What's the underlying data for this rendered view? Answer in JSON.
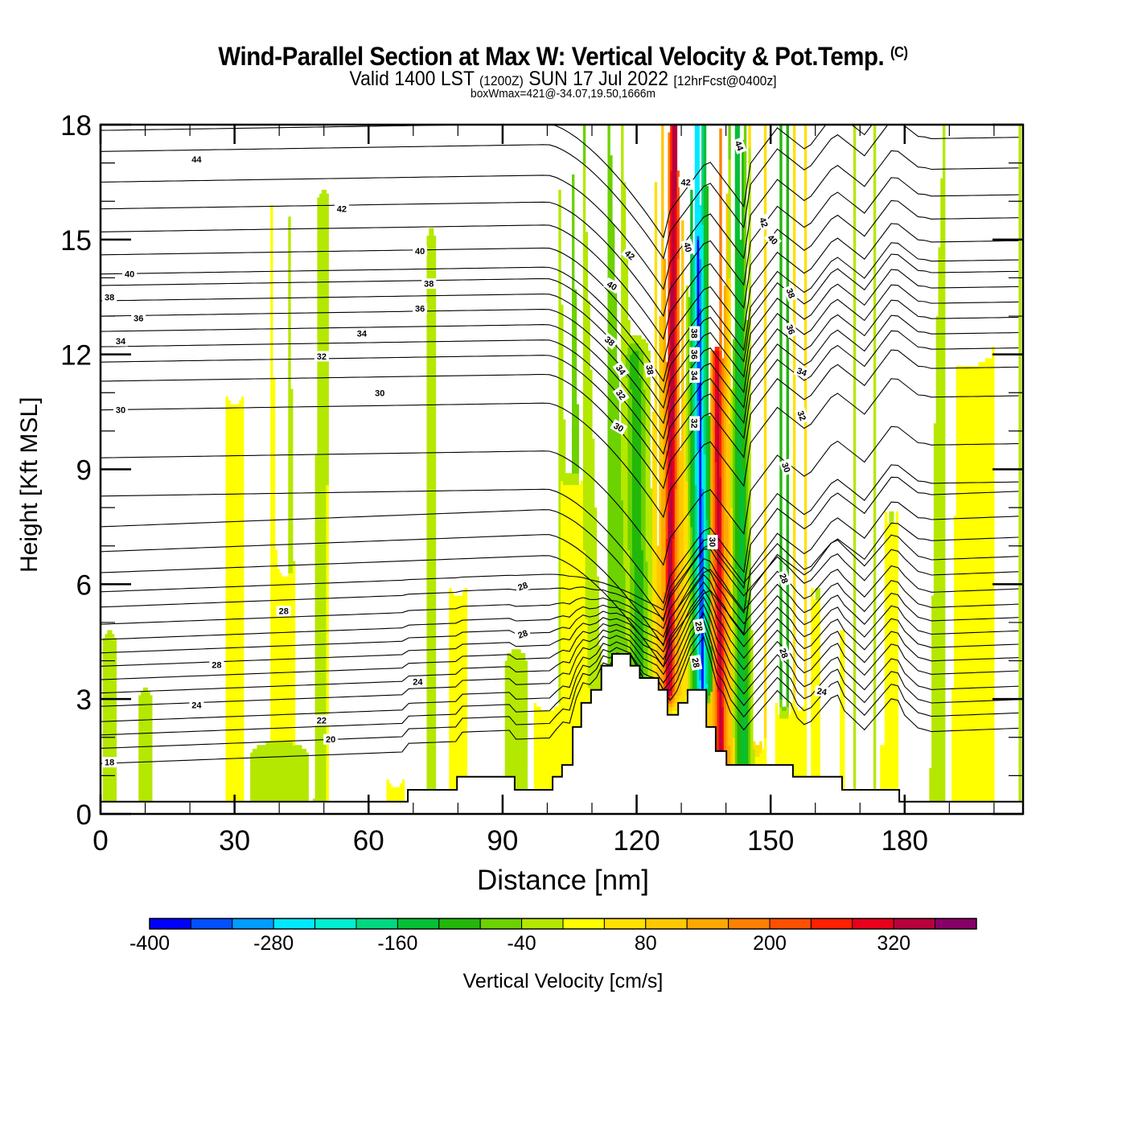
{
  "header": {
    "title_main": "Wind-Parallel Section at Max W: Vertical Velocity & Pot.Temp.",
    "title_copyright": "(C)",
    "valid_prefix": "Valid 1400 LST",
    "valid_utc": "(1200Z)",
    "valid_date": "SUN 17 Jul 2022",
    "forecast_info": "[12hrFcst@0400z]",
    "box_wmax": "boxWmax=421@-34.07,19.50,1666m"
  },
  "chart_data": {
    "type": "heatmap",
    "title": "Wind-Parallel Section at Max W: Vertical Velocity & Pot.Temp.",
    "xlabel": "Distance [nm]",
    "ylabel": "Height [Kft MSL]",
    "xlim": [
      0,
      206.5
    ],
    "ylim": [
      0,
      18
    ],
    "x_ticks": [
      0,
      30,
      60,
      90,
      120,
      150,
      180
    ],
    "x_tick_labels": [
      "0",
      "30",
      "60",
      "90",
      "120",
      "150",
      "180"
    ],
    "x_minor_tick_step": 10,
    "y_ticks": [
      0,
      3,
      6,
      9,
      12,
      15,
      18
    ],
    "y_tick_labels": [
      "0",
      "3",
      "6",
      "9",
      "12",
      "15",
      "18"
    ],
    "colorbar": {
      "label": "Vertical Velocity [cm/s]",
      "placement": "bottom",
      "min": -400,
      "max": 400,
      "step": 40,
      "tick_values": [
        -400,
        -280,
        -160,
        -40,
        80,
        200,
        320
      ],
      "tick_labels": [
        "-400",
        "-280",
        "-160",
        "-40",
        "80",
        "200",
        "320"
      ],
      "colors": [
        "#0000ff",
        "#0050ff",
        "#009cff",
        "#00e8ff",
        "#00f0d0",
        "#00d880",
        "#04c036",
        "#22b80a",
        "#6cd200",
        "#b5e800",
        "#ffff00",
        "#ffe000",
        "#ffc800",
        "#ffa800",
        "#ff8000",
        "#ff5000",
        "#ff2000",
        "#e8001c",
        "#b8003c",
        "#880068"
      ]
    },
    "background_velocity": 20,
    "velocity_features": [
      {
        "name": "weak-downdraft",
        "x_bottom": 2,
        "x_top": 2,
        "halfwidth": 2,
        "z_min": 0.3,
        "z_max": 4.5,
        "value": -20
      },
      {
        "name": "weak-downdraft",
        "x_bottom": 10,
        "x_top": 10,
        "halfwidth": 2,
        "z_min": 0.3,
        "z_max": 3.0,
        "value": -20
      },
      {
        "name": "weak-downdraft",
        "x_bottom": 30,
        "x_top": 30,
        "halfwidth": 2.5,
        "z_min": 11,
        "z_max": 18,
        "value": -20
      },
      {
        "name": "weak-downdraft",
        "x_bottom": 42,
        "x_top": 40,
        "halfwidth": 2.5,
        "z_min": 6.5,
        "z_max": 18,
        "value": -20
      },
      {
        "name": "weak-downdraft",
        "x_bottom": 49,
        "x_top": 50,
        "halfwidth": 1.6,
        "z_min": 0.3,
        "z_max": 16,
        "value": -20
      },
      {
        "name": "weak-downdraft",
        "x_bottom": 40,
        "x_top": 40,
        "halfwidth": 8,
        "z_min": 0.3,
        "z_max": 1.6,
        "value": -20
      },
      {
        "name": "weak-downdraft",
        "x_bottom": 66,
        "x_top": 66,
        "halfwidth": 2.5,
        "z_min": 1,
        "z_max": 18,
        "value": -20
      },
      {
        "name": "weak-downdraft",
        "x_bottom": 74,
        "x_top": 74,
        "halfwidth": 1.2,
        "z_min": 0.6,
        "z_max": 15,
        "value": -20
      },
      {
        "name": "weak-downdraft",
        "x_bottom": 80,
        "x_top": 80,
        "halfwidth": 2.5,
        "z_min": 6,
        "z_max": 18,
        "value": -20
      },
      {
        "name": "weak-downdraft",
        "x_bottom": 93,
        "x_top": 93,
        "halfwidth": 3,
        "z_min": 0.6,
        "z_max": 4.0,
        "value": -20
      },
      {
        "name": "weak-downdraft",
        "x_bottom": 100,
        "x_top": 100,
        "halfwidth": 4,
        "z_min": 3,
        "z_max": 18,
        "value": -20
      },
      {
        "name": "moderate-downdraft",
        "x_bottom": 107,
        "x_top": 104,
        "halfwidth": 3,
        "z_min": 9,
        "z_max": 18,
        "value": -60
      },
      {
        "name": "moderate-downdraft",
        "x_bottom": 116,
        "x_top": 111,
        "halfwidth": 5,
        "z_min": 3,
        "z_max": 18,
        "value": -70
      },
      {
        "name": "downdraft",
        "x_bottom": 121,
        "x_top": 119,
        "halfwidth": 2.5,
        "z_min": 3,
        "z_max": 12,
        "value": -100
      },
      {
        "name": "updraft-left",
        "x_bottom": 127,
        "x_top": 128.5,
        "halfwidth": 1.4,
        "z_min": 3.2,
        "z_max": 18,
        "value": 350
      },
      {
        "name": "updraft-left-edge",
        "x_bottom": 127,
        "x_top": 128.5,
        "halfwidth": 3.0,
        "z_min": 3.2,
        "z_max": 18,
        "value": 180
      },
      {
        "name": "downdraft-core",
        "x_bottom": 135,
        "x_top": 133.5,
        "halfwidth": 0.9,
        "z_min": 3.3,
        "z_max": 15,
        "value": -380
      },
      {
        "name": "downdraft-core-edge",
        "x_bottom": 135,
        "x_top": 133.5,
        "halfwidth": 2.2,
        "z_min": 3.3,
        "z_max": 18,
        "value": -260
      },
      {
        "name": "updraft-right",
        "x_bottom": 139,
        "x_top": 137.5,
        "halfwidth": 1.2,
        "z_min": 1.5,
        "z_max": 12,
        "value": 330
      },
      {
        "name": "updraft-right-edge",
        "x_bottom": 139,
        "x_top": 137.5,
        "halfwidth": 2.6,
        "z_min": 1.3,
        "z_max": 18,
        "value": 200
      },
      {
        "name": "downdraft",
        "x_bottom": 144,
        "x_top": 142.5,
        "halfwidth": 2.0,
        "z_min": 1.3,
        "z_max": 18,
        "value": -130
      },
      {
        "name": "updraft",
        "x_bottom": 147,
        "x_top": 147,
        "halfwidth": 1.5,
        "z_min": 2,
        "z_max": 18,
        "value": 110
      },
      {
        "name": "downdraft",
        "x_bottom": 153,
        "x_top": 153,
        "halfwidth": 1.4,
        "z_min": 3,
        "z_max": 18,
        "value": -120
      },
      {
        "name": "updraft",
        "x_bottom": 156.5,
        "x_top": 156.5,
        "halfwidth": 1.6,
        "z_min": 3,
        "z_max": 18,
        "value": 60
      },
      {
        "name": "downdraft",
        "x_bottom": 160.5,
        "x_top": 160.5,
        "halfwidth": 1.2,
        "z_min": 6,
        "z_max": 18,
        "value": -60
      },
      {
        "name": "weak-downdraft",
        "x_bottom": 162.5,
        "x_top": 162.5,
        "halfwidth": 2.0,
        "z_min": 1,
        "z_max": 18,
        "value": -20
      },
      {
        "name": "updraft",
        "x_bottom": 166,
        "x_top": 166,
        "halfwidth": 1.2,
        "z_min": 5,
        "z_max": 18,
        "value": 50
      },
      {
        "name": "weak-downdraft",
        "x_bottom": 171,
        "x_top": 171,
        "halfwidth": 3,
        "z_min": 0.6,
        "z_max": 18,
        "value": -20
      },
      {
        "name": "downdraft",
        "x_bottom": 177,
        "x_top": 177,
        "halfwidth": 1.2,
        "z_min": 8,
        "z_max": 18,
        "value": -60
      },
      {
        "name": "updraft",
        "x_bottom": 175,
        "x_top": 175,
        "halfwidth": 1.2,
        "z_min": 2,
        "z_max": 18,
        "value": 50
      },
      {
        "name": "weak-downdraft",
        "x_bottom": 182,
        "x_top": 182,
        "halfwidth": 2,
        "z_min": 0.3,
        "z_max": 18,
        "value": -20
      },
      {
        "name": "weak-downdraft",
        "x_bottom": 190,
        "x_top": 195,
        "halfwidth": 8,
        "z_min": 12,
        "z_max": 18,
        "value": -20
      },
      {
        "name": "weak-downdraft",
        "x_bottom": 188,
        "x_top": 190,
        "halfwidth": 3,
        "z_min": 0.3,
        "z_max": 12,
        "value": -20
      },
      {
        "name": "weak-downdraft",
        "x_bottom": 203,
        "x_top": 203,
        "halfwidth": 3.5,
        "z_min": 0.3,
        "z_max": 18,
        "value": -20
      }
    ],
    "terrain_profile": {
      "units": "kft MSL vs nm",
      "points": [
        [
          0,
          0.32
        ],
        [
          68.8,
          0.32
        ],
        [
          68.8,
          0.63
        ],
        [
          79.8,
          0.63
        ],
        [
          79.8,
          0.97
        ],
        [
          92.7,
          0.97
        ],
        [
          92.7,
          0.63
        ],
        [
          101.2,
          0.63
        ],
        [
          101.2,
          0.97
        ],
        [
          103.3,
          0.97
        ],
        [
          103.3,
          1.28
        ],
        [
          105.7,
          1.28
        ],
        [
          105.7,
          2.27
        ],
        [
          107.6,
          2.27
        ],
        [
          107.6,
          2.9
        ],
        [
          109.8,
          2.9
        ],
        [
          109.8,
          3.24
        ],
        [
          112.1,
          3.24
        ],
        [
          112.1,
          3.87
        ],
        [
          114.5,
          3.87
        ],
        [
          114.5,
          4.18
        ],
        [
          118.6,
          4.18
        ],
        [
          118.6,
          3.87
        ],
        [
          120.7,
          3.87
        ],
        [
          120.7,
          3.55
        ],
        [
          124.9,
          3.55
        ],
        [
          124.9,
          3.24
        ],
        [
          126.9,
          3.24
        ],
        [
          126.9,
          2.59
        ],
        [
          129.3,
          2.59
        ],
        [
          129.3,
          2.9
        ],
        [
          131.4,
          2.9
        ],
        [
          131.4,
          3.24
        ],
        [
          135.6,
          3.24
        ],
        [
          135.6,
          2.27
        ],
        [
          137.7,
          2.27
        ],
        [
          137.7,
          1.64
        ],
        [
          140.1,
          1.64
        ],
        [
          140.1,
          1.28
        ],
        [
          155.0,
          1.28
        ],
        [
          155.0,
          0.97
        ],
        [
          166.0,
          0.97
        ],
        [
          166.0,
          0.63
        ],
        [
          178.8,
          0.63
        ],
        [
          178.8,
          0.32
        ],
        [
          206.5,
          0.32
        ]
      ]
    },
    "theta_contours": {
      "variable": "Potential Temperature",
      "interval": 1,
      "left_edge_heights_kft": [
        1.3,
        1.7,
        2.05,
        2.4,
        2.8,
        3.15,
        3.5,
        3.85,
        4.2,
        4.55,
        4.95,
        5.4,
        5.8,
        6.3,
        6.85,
        7.5,
        8.3,
        9.3,
        10.55,
        11.3,
        11.8,
        12.2,
        12.6,
        13.0,
        13.4,
        13.8,
        14.1,
        14.6,
        15.2,
        15.8,
        16.5,
        17.3,
        17.85
      ],
      "labels": [
        {
          "text": "44",
          "x": 21.5,
          "z": 17.1
        },
        {
          "text": "42",
          "x": 54,
          "z": 15.8
        },
        {
          "text": "40",
          "x": 6.5,
          "z": 14.1
        },
        {
          "text": "40",
          "x": 71.5,
          "z": 14.7
        },
        {
          "text": "38",
          "x": 2,
          "z": 13.5
        },
        {
          "text": "38",
          "x": 73.5,
          "z": 13.85
        },
        {
          "text": "36",
          "x": 8.5,
          "z": 12.95
        },
        {
          "text": "36",
          "x": 71.5,
          "z": 13.2
        },
        {
          "text": "34",
          "x": 4.5,
          "z": 12.35
        },
        {
          "text": "34",
          "x": 58.5,
          "z": 12.55
        },
        {
          "text": "32",
          "x": 49.5,
          "z": 11.95
        },
        {
          "text": "30",
          "x": 4.5,
          "z": 10.55
        },
        {
          "text": "30",
          "x": 62.5,
          "z": 11.0
        },
        {
          "text": "42",
          "x": 118.5,
          "z": 14.6,
          "angle": 40
        },
        {
          "text": "40",
          "x": 114.5,
          "z": 13.8,
          "angle": 30
        },
        {
          "text": "38",
          "x": 114,
          "z": 12.35,
          "angle": 40
        },
        {
          "text": "34",
          "x": 116.5,
          "z": 11.6,
          "angle": 55
        },
        {
          "text": "32",
          "x": 116.5,
          "z": 10.95,
          "angle": 55
        },
        {
          "text": "30",
          "x": 116,
          "z": 10.1,
          "angle": 30
        },
        {
          "text": "38",
          "x": 123,
          "z": 11.6,
          "angle": 80
        },
        {
          "text": "42",
          "x": 131,
          "z": 16.5,
          "angle": 0
        },
        {
          "text": "40",
          "x": 131.5,
          "z": 14.8,
          "angle": 75
        },
        {
          "text": "38",
          "x": 133,
          "z": 12.55,
          "angle": 90
        },
        {
          "text": "36",
          "x": 133,
          "z": 12.0,
          "angle": 90
        },
        {
          "text": "34",
          "x": 133,
          "z": 11.45,
          "angle": 90
        },
        {
          "text": "32",
          "x": 133,
          "z": 10.2,
          "angle": 90
        },
        {
          "text": "30",
          "x": 137,
          "z": 7.1,
          "angle": 90
        },
        {
          "text": "28",
          "x": 134,
          "z": 4.9,
          "angle": 80
        },
        {
          "text": "28",
          "x": 133.3,
          "z": 3.95,
          "angle": 80
        },
        {
          "text": "44",
          "x": 143,
          "z": 17.45,
          "angle": 70
        },
        {
          "text": "42",
          "x": 148.5,
          "z": 15.45,
          "angle": 70
        },
        {
          "text": "40",
          "x": 150.5,
          "z": 15.0,
          "angle": 45
        },
        {
          "text": "38",
          "x": 154.5,
          "z": 13.6,
          "angle": 70
        },
        {
          "text": "36",
          "x": 154.5,
          "z": 12.65,
          "angle": 70
        },
        {
          "text": "34",
          "x": 157,
          "z": 11.55,
          "angle": 20
        },
        {
          "text": "32",
          "x": 157,
          "z": 10.4,
          "angle": 70
        },
        {
          "text": "30",
          "x": 153.5,
          "z": 9.05,
          "angle": 70
        },
        {
          "text": "28",
          "x": 153,
          "z": 6.15,
          "angle": 70
        },
        {
          "text": "28",
          "x": 153,
          "z": 4.2,
          "angle": 70
        },
        {
          "text": "24",
          "x": 161.5,
          "z": 3.2,
          "angle": 10
        },
        {
          "text": "28",
          "x": 94.5,
          "z": 5.95,
          "angle": -20
        },
        {
          "text": "28",
          "x": 94.5,
          "z": 4.7,
          "angle": -20
        },
        {
          "text": "28",
          "x": 41,
          "z": 5.3
        },
        {
          "text": "28",
          "x": 26,
          "z": 3.9
        },
        {
          "text": "24",
          "x": 71,
          "z": 3.45
        },
        {
          "text": "24",
          "x": 21.5,
          "z": 2.85
        },
        {
          "text": "22",
          "x": 49.5,
          "z": 2.45
        },
        {
          "text": "20",
          "x": 51.5,
          "z": 1.95
        },
        {
          "text": "18",
          "x": 2,
          "z": 1.35
        }
      ]
    }
  }
}
